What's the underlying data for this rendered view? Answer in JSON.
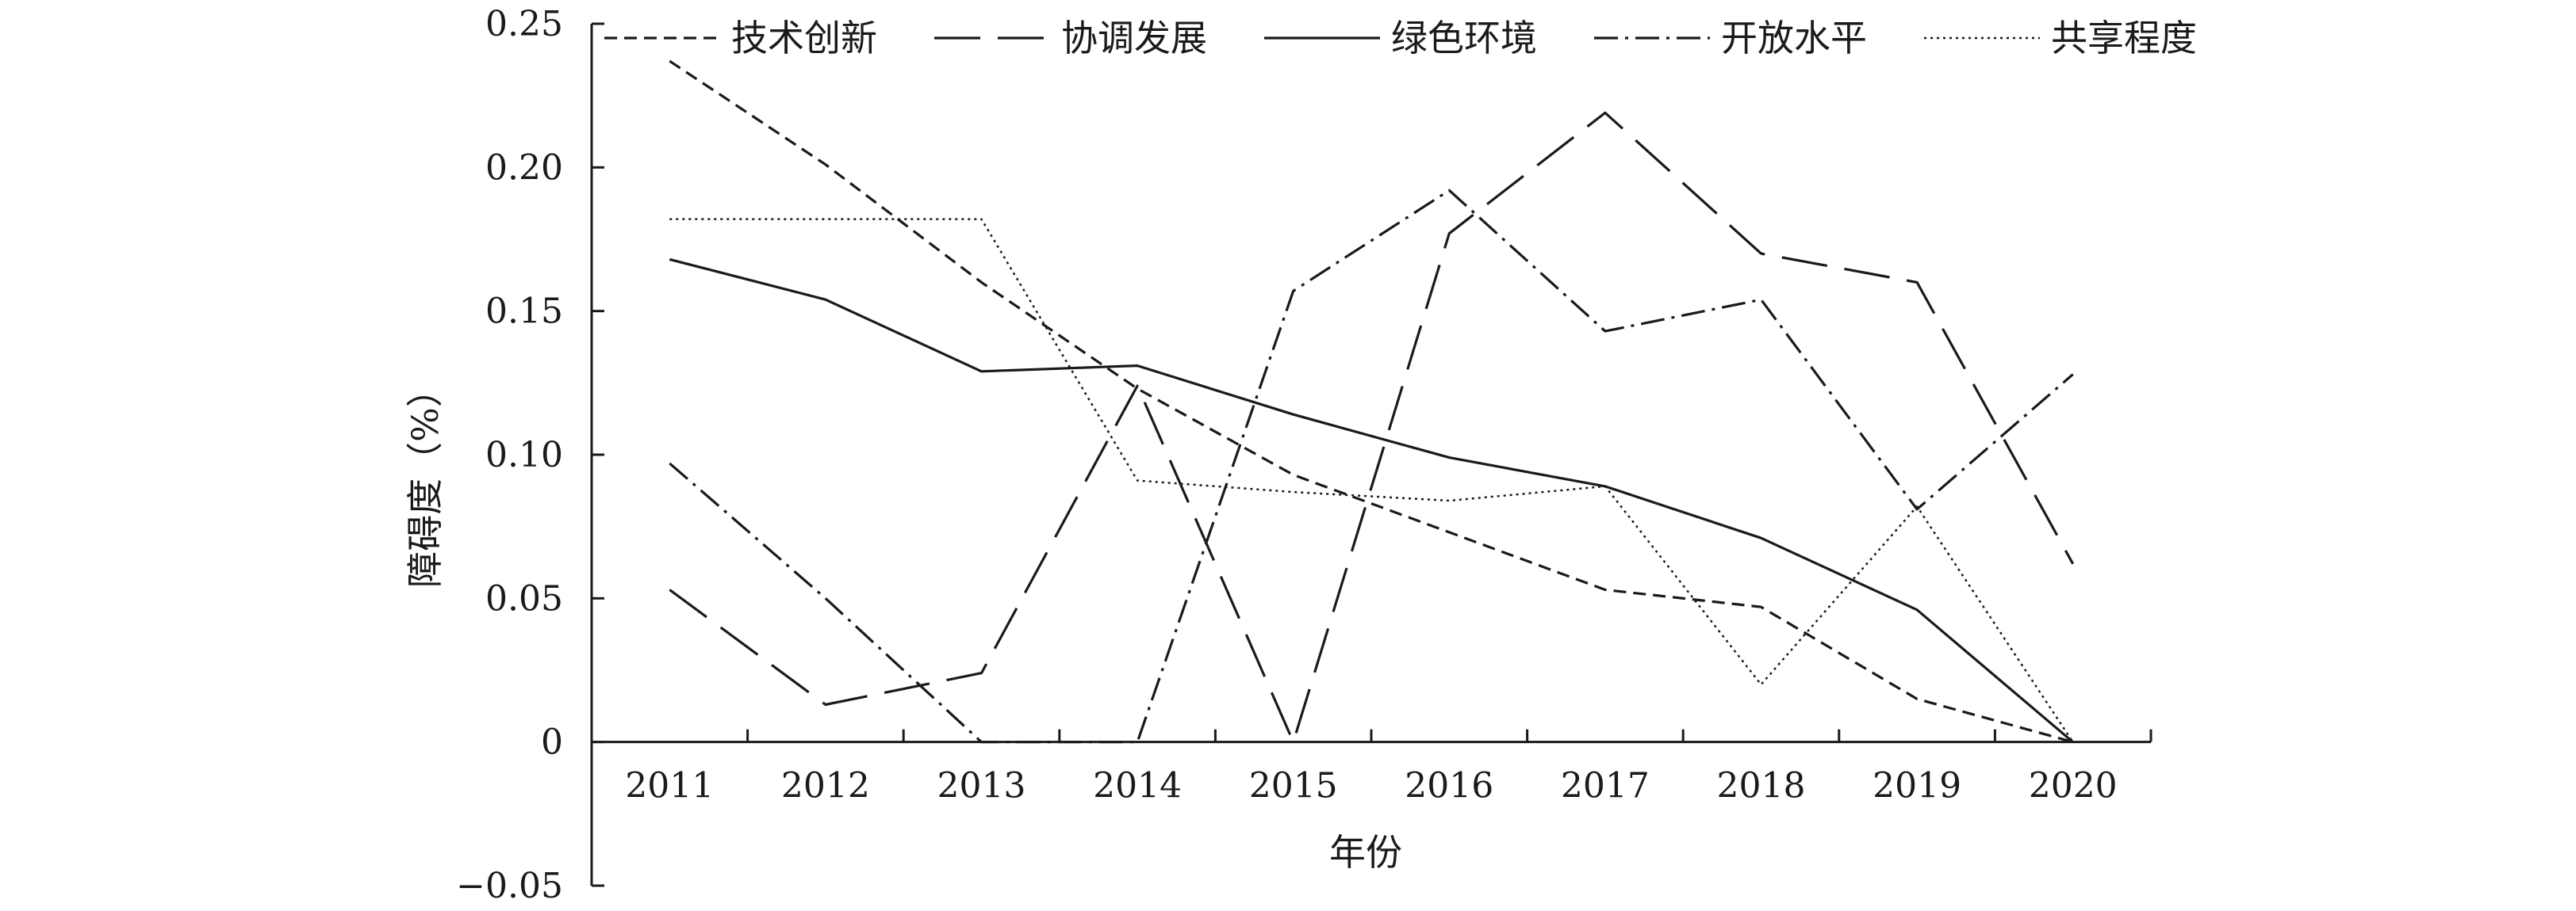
{
  "chart_data": {
    "type": "line",
    "title": "",
    "xlabel": "年份",
    "ylabel": "障碍度（%）",
    "ylim": [
      -0.05,
      0.25
    ],
    "yticks": [
      -0.05,
      0,
      0.05,
      0.1,
      0.15,
      0.2,
      0.25
    ],
    "yticklabels": [
      "−0.05",
      "0",
      "0.05",
      "0.10",
      "0.15",
      "0.20",
      "0.25"
    ],
    "categories": [
      "2011",
      "2012",
      "2013",
      "2014",
      "2015",
      "2016",
      "2017",
      "2018",
      "2019",
      "2020"
    ],
    "grid": false,
    "legend_position": "top",
    "series": [
      {
        "name": "技术创新",
        "style": "short-dash",
        "color": "#1a1a1a",
        "values": [
          0.237,
          0.201,
          0.16,
          0.123,
          0.093,
          0.073,
          0.053,
          0.047,
          0.015,
          0.0
        ]
      },
      {
        "name": "协调发展",
        "style": "long-dash",
        "color": "#1a1a1a",
        "values": [
          0.053,
          0.013,
          0.024,
          0.124,
          0.0,
          0.177,
          0.219,
          0.17,
          0.16,
          0.062
        ]
      },
      {
        "name": "绿色环境",
        "style": "solid",
        "color": "#1a1a1a",
        "values": [
          0.168,
          0.154,
          0.129,
          0.131,
          0.114,
          0.099,
          0.089,
          0.071,
          0.046,
          0.0
        ]
      },
      {
        "name": "开放水平",
        "style": "dash-dot",
        "color": "#1a1a1a",
        "values": [
          0.097,
          0.05,
          0.0,
          0.0,
          0.157,
          0.192,
          0.143,
          0.154,
          0.081,
          0.128
        ]
      },
      {
        "name": "共享程度",
        "style": "dotted",
        "color": "#1a1a1a",
        "values": [
          0.182,
          0.182,
          0.182,
          0.091,
          0.087,
          0.084,
          0.089,
          0.02,
          0.082,
          0.0
        ]
      }
    ]
  }
}
